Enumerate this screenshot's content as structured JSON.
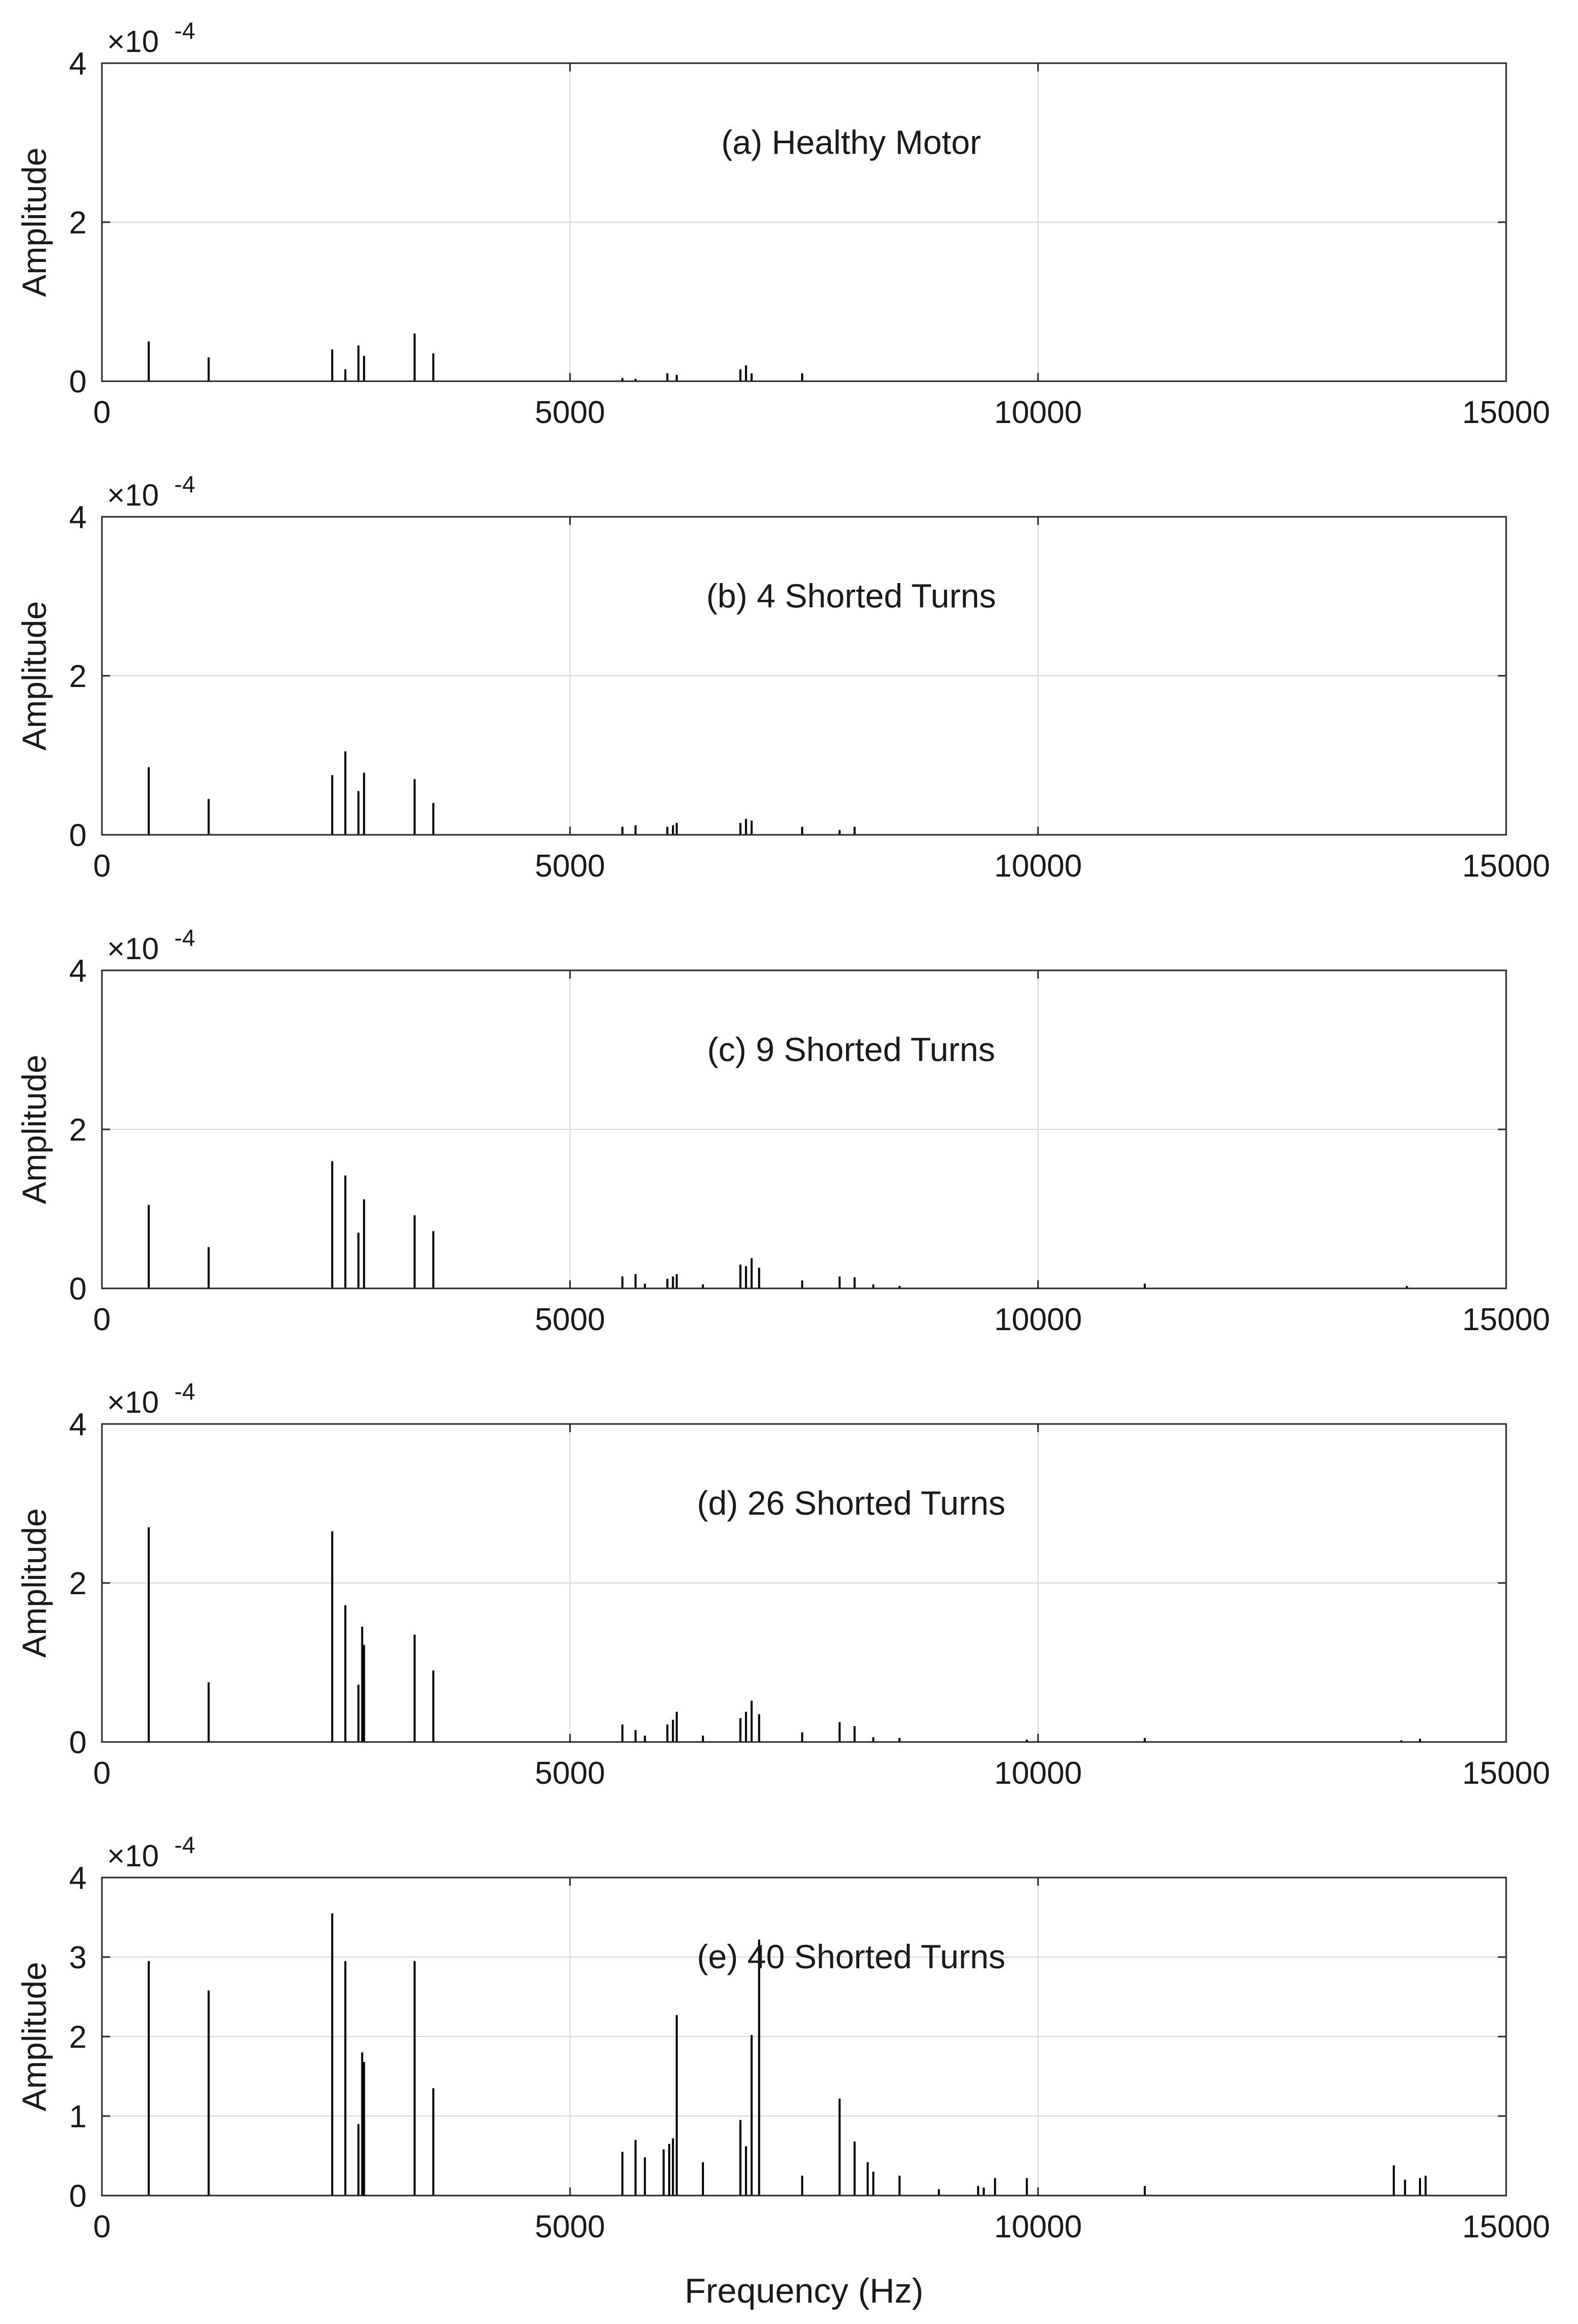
{
  "chart_data": [
    {
      "type": "bar",
      "annotation": "(a) Healthy Motor",
      "xlabel": "",
      "ylabel": "Amplitude",
      "xlim": [
        0,
        15000
      ],
      "ylim": [
        0,
        4
      ],
      "xticks": [
        "0",
        "5000",
        "10000",
        "15000"
      ],
      "yticks": [
        "0",
        "2",
        "4"
      ],
      "multiplier": "×10",
      "multiplier_exp": "-4",
      "grid": true,
      "x": [
        500,
        1140,
        2460,
        2600,
        2740,
        2800,
        3340,
        3540,
        5560,
        5700,
        6040,
        6140,
        6820,
        6880,
        6940,
        7480
      ],
      "values": [
        0.5,
        0.3,
        0.4,
        0.15,
        0.45,
        0.32,
        0.6,
        0.35,
        0.04,
        0.03,
        0.1,
        0.08,
        0.15,
        0.2,
        0.1,
        0.1
      ]
    },
    {
      "type": "bar",
      "annotation": "(b) 4 Shorted Turns",
      "xlabel": "",
      "ylabel": "Amplitude",
      "xlim": [
        0,
        15000
      ],
      "ylim": [
        0,
        4
      ],
      "xticks": [
        "0",
        "5000",
        "10000",
        "15000"
      ],
      "yticks": [
        "0",
        "2",
        "4"
      ],
      "multiplier": "×10",
      "multiplier_exp": "-4",
      "grid": true,
      "x": [
        500,
        1140,
        2460,
        2600,
        2740,
        2800,
        3340,
        3540,
        5560,
        5700,
        6040,
        6100,
        6140,
        6820,
        6880,
        6940,
        7480,
        7880,
        8040
      ],
      "values": [
        0.85,
        0.45,
        0.75,
        1.05,
        0.55,
        0.78,
        0.7,
        0.4,
        0.1,
        0.12,
        0.1,
        0.12,
        0.15,
        0.15,
        0.2,
        0.18,
        0.1,
        0.06,
        0.1
      ]
    },
    {
      "type": "bar",
      "annotation": "(c) 9 Shorted Turns",
      "xlabel": "",
      "ylabel": "Amplitude",
      "xlim": [
        0,
        15000
      ],
      "ylim": [
        0,
        4
      ],
      "xticks": [
        "0",
        "5000",
        "10000",
        "15000"
      ],
      "yticks": [
        "0",
        "2",
        "4"
      ],
      "multiplier": "×10",
      "multiplier_exp": "-4",
      "grid": true,
      "x": [
        500,
        1140,
        2460,
        2600,
        2740,
        2800,
        3340,
        3540,
        5560,
        5700,
        5800,
        6040,
        6100,
        6140,
        6420,
        6820,
        6880,
        6940,
        7020,
        7480,
        7880,
        8040,
        8240,
        8520,
        11140,
        13940
      ],
      "values": [
        1.05,
        0.52,
        1.6,
        1.42,
        0.7,
        1.12,
        0.92,
        0.72,
        0.15,
        0.18,
        0.06,
        0.12,
        0.15,
        0.18,
        0.05,
        0.3,
        0.28,
        0.38,
        0.26,
        0.1,
        0.15,
        0.14,
        0.05,
        0.03,
        0.06,
        0.03
      ]
    },
    {
      "type": "bar",
      "annotation": "(d) 26 Shorted Turns",
      "xlabel": "",
      "ylabel": "Amplitude",
      "xlim": [
        0,
        15000
      ],
      "ylim": [
        0,
        4
      ],
      "xticks": [
        "0",
        "5000",
        "10000",
        "15000"
      ],
      "yticks": [
        "0",
        "2",
        "4"
      ],
      "multiplier": "×10",
      "multiplier_exp": "-4",
      "grid": true,
      "x": [
        500,
        1140,
        2460,
        2600,
        2740,
        2780,
        2800,
        3340,
        3540,
        5560,
        5700,
        5800,
        6040,
        6100,
        6140,
        6420,
        6820,
        6880,
        6940,
        7020,
        7480,
        7880,
        8040,
        8240,
        8520,
        9880,
        11140,
        13880,
        14080
      ],
      "values": [
        2.7,
        0.75,
        2.65,
        1.72,
        0.72,
        1.45,
        1.22,
        1.35,
        0.9,
        0.22,
        0.15,
        0.08,
        0.22,
        0.28,
        0.38,
        0.08,
        0.3,
        0.38,
        0.52,
        0.35,
        0.12,
        0.25,
        0.2,
        0.06,
        0.05,
        0.03,
        0.05,
        0.02,
        0.04
      ]
    },
    {
      "type": "bar",
      "annotation": "(e) 40 Shorted Turns",
      "xlabel": "Frequency (Hz)",
      "ylabel": "Amplitude",
      "xlim": [
        0,
        15000
      ],
      "ylim": [
        0,
        4
      ],
      "xticks": [
        "0",
        "5000",
        "10000",
        "15000"
      ],
      "yticks": [
        "0",
        "1",
        "2",
        "3",
        "4"
      ],
      "multiplier": "×10",
      "multiplier_exp": "-4",
      "grid": true,
      "x": [
        500,
        1140,
        2460,
        2600,
        2740,
        2780,
        2800,
        3340,
        3540,
        5560,
        5700,
        5800,
        6000,
        6060,
        6100,
        6140,
        6420,
        6820,
        6880,
        6940,
        7020,
        7480,
        7880,
        8040,
        8180,
        8240,
        8520,
        8940,
        9360,
        9420,
        9540,
        9880,
        11140,
        13800,
        13920,
        14080,
        14140
      ],
      "values": [
        2.95,
        2.58,
        3.55,
        2.95,
        0.9,
        1.8,
        1.68,
        2.95,
        1.35,
        0.55,
        0.7,
        0.48,
        0.58,
        0.65,
        0.72,
        2.27,
        0.42,
        0.95,
        0.62,
        2.02,
        3.22,
        0.25,
        1.22,
        0.68,
        0.42,
        0.3,
        0.25,
        0.08,
        0.12,
        0.1,
        0.22,
        0.22,
        0.12,
        0.38,
        0.2,
        0.22,
        0.25
      ]
    }
  ]
}
